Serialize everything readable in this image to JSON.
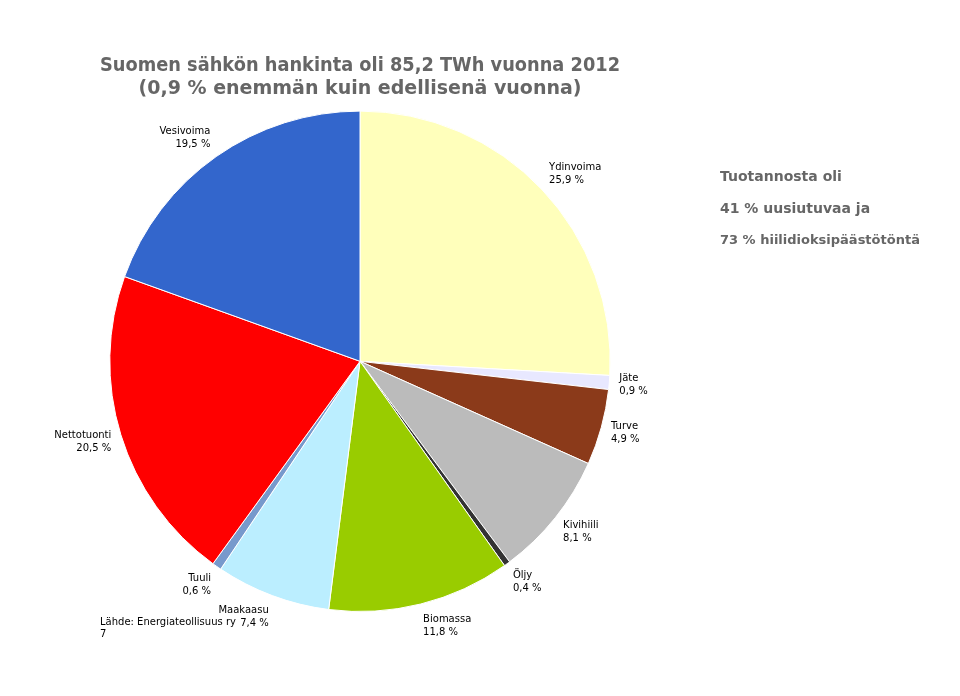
{
  "chart_data": {
    "type": "pie",
    "title": [
      "Suomen sähkön hankinta oli 85,2 TWh vuonna 2012",
      "(0,9 % enemmän kuin edellisenä vuonna)"
    ],
    "subtitle": [
      "Lähde: Energiateollisuus ry",
      "7"
    ],
    "annotations": [
      "Tuotannosta oli",
      "41 % uusiutuvaa ja",
      "73 % hiilidioksipäästötöntä"
    ],
    "categories": [
      "Ydinvoima",
      "Jäte",
      "Turve",
      "Kivihiili",
      "Öljy",
      "Biomassa",
      "Maakaasu",
      "Tuuli",
      "Nettotuonti",
      "Vesivoima"
    ],
    "values": [
      25.9,
      0.9,
      4.9,
      8.1,
      0.4,
      11.8,
      7.4,
      0.6,
      20.5,
      19.5
    ],
    "value_labels": [
      "25,9 %",
      "0,9 %",
      "4,9 %",
      "8,1 %",
      "0,4 %",
      "11,8 %",
      "7,4 %",
      "0,6 %",
      "20,5 %",
      "19,5 %"
    ],
    "colors": [
      "#FFFFBB",
      "#E8E8FF",
      "#8B3A1A",
      "#BBBBBB",
      "#333333",
      "#99CC00",
      "#BBEEFF",
      "#7799CC",
      "#FF0000",
      "#3366CC"
    ],
    "data_labels": true,
    "legend": false
  }
}
